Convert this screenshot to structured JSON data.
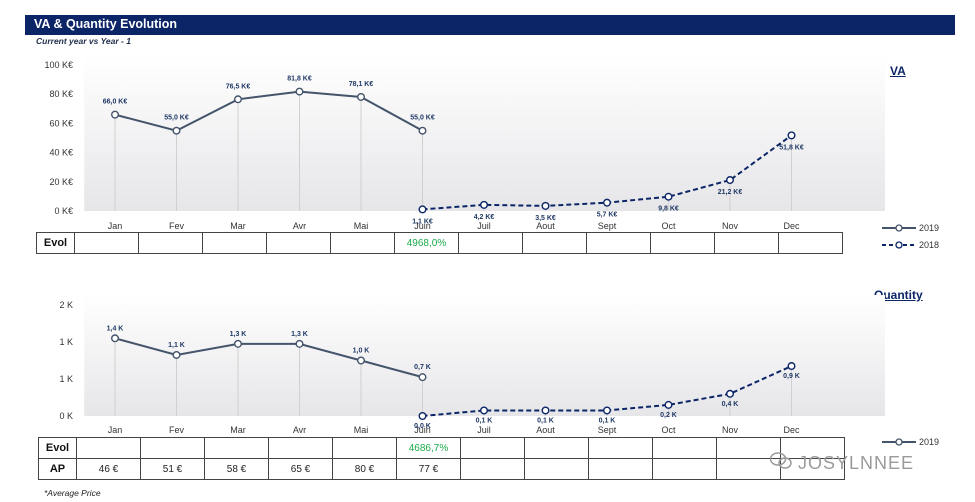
{
  "header": {
    "title": "VA & Quantity Evolution",
    "subtitle": "Current year vs Year - 1"
  },
  "colors": {
    "header_bg": "#0c2566",
    "series_current": "#44546a",
    "series_previous": "#0c2566",
    "evol_positive": "#1aaa4a"
  },
  "chart_data": [
    {
      "type": "line",
      "name": "VA",
      "categories": [
        "Jan",
        "Fev",
        "Mar",
        "Avr",
        "Mai",
        "Juin",
        "Juil",
        "Aout",
        "Sept",
        "Oct",
        "Nov",
        "Dec"
      ],
      "category_labels": [
        "Jan",
        "Fev",
        "Mar",
        "Avr",
        "Mai",
        "Juin",
        "Juil",
        "Aout",
        "Sept",
        "Oct",
        "Nov",
        "Dec"
      ],
      "yticks": [
        "100 K€",
        "80 K€",
        "60 K€",
        "40 K€",
        "20 K€",
        "0 K€"
      ],
      "ylim": [
        0,
        100
      ],
      "grid": false,
      "legend_position": "right",
      "series": [
        {
          "name": "2019",
          "style": "solid",
          "values": [
            66.0,
            55.0,
            76.5,
            81.8,
            78.1,
            55.0,
            null,
            null,
            null,
            null,
            null,
            null
          ],
          "labels": [
            "66,0 K€",
            "55,0 K€",
            "76,5 K€",
            "81,8 K€",
            "78,1 K€",
            "55,0 K€",
            "",
            "",
            "",
            "",
            "",
            ""
          ]
        },
        {
          "name": "2018",
          "style": "dashed",
          "values": [
            null,
            null,
            null,
            null,
            null,
            1.1,
            4.2,
            3.5,
            5.7,
            9.8,
            21.2,
            51.8
          ],
          "labels": [
            "",
            "",
            "",
            "",
            "",
            "1,1 K€",
            "4,2 K€",
            "3,5 K€",
            "5,7 K€",
            "9,8 K€",
            "21,2 K€",
            "51,8 K€"
          ]
        }
      ]
    },
    {
      "type": "line",
      "name": "Quantity",
      "categories": [
        "Jan",
        "Fev",
        "Mar",
        "Avr",
        "Mai",
        "Juin",
        "Juil",
        "Aout",
        "Sept",
        "Oct",
        "Nov",
        "Dec"
      ],
      "category_labels": [
        "Jan",
        "Fev",
        "Mar",
        "Avr",
        "Mai",
        "Juin",
        "Juil",
        "Aout",
        "Sept",
        "Oct",
        "Nov",
        "Dec"
      ],
      "yticks": [
        "2 K",
        "1 K",
        "1 K",
        "0 K"
      ],
      "ylim": [
        0,
        2
      ],
      "grid": false,
      "legend_position": "right",
      "series": [
        {
          "name": "2019",
          "style": "solid",
          "values": [
            1.4,
            1.1,
            1.3,
            1.3,
            1.0,
            0.7,
            null,
            null,
            null,
            null,
            null,
            null
          ],
          "labels": [
            "1,4 K",
            "1,1 K",
            "1,3 K",
            "1,3 K",
            "1,0 K",
            "0,7 K",
            "",
            "",
            "",
            "",
            "",
            ""
          ]
        },
        {
          "name": "2018",
          "style": "dashed",
          "values": [
            null,
            null,
            null,
            null,
            null,
            0.0,
            0.1,
            0.1,
            0.1,
            0.2,
            0.4,
            0.9
          ],
          "labels": [
            "",
            "",
            "",
            "",
            "",
            "0,0 K",
            "0,1 K",
            "0,1 K",
            "0,1 K",
            "0,2 K",
            "0,4 K",
            "0,9 K"
          ]
        }
      ]
    }
  ],
  "va_table": {
    "evol_label": "Evol",
    "cells": [
      "",
      "",
      "",
      "",
      "",
      "4968,0%",
      "",
      "",
      "",
      "",
      "",
      ""
    ]
  },
  "qty_table": {
    "evol_label": "Evol",
    "evol_cells": [
      "",
      "",
      "",
      "",
      "",
      "4686,7%",
      "",
      "",
      "",
      "",
      "",
      ""
    ],
    "ap_label": "AP",
    "ap_cells": [
      "46 €",
      "51 €",
      "58 €",
      "65 €",
      "80 €",
      "77 €",
      "",
      "",
      "",
      "",
      "",
      ""
    ]
  },
  "legend": {
    "current": "2019",
    "previous": "2018"
  },
  "footnote": "*Average Price",
  "watermark": "JOSYLNNEE"
}
